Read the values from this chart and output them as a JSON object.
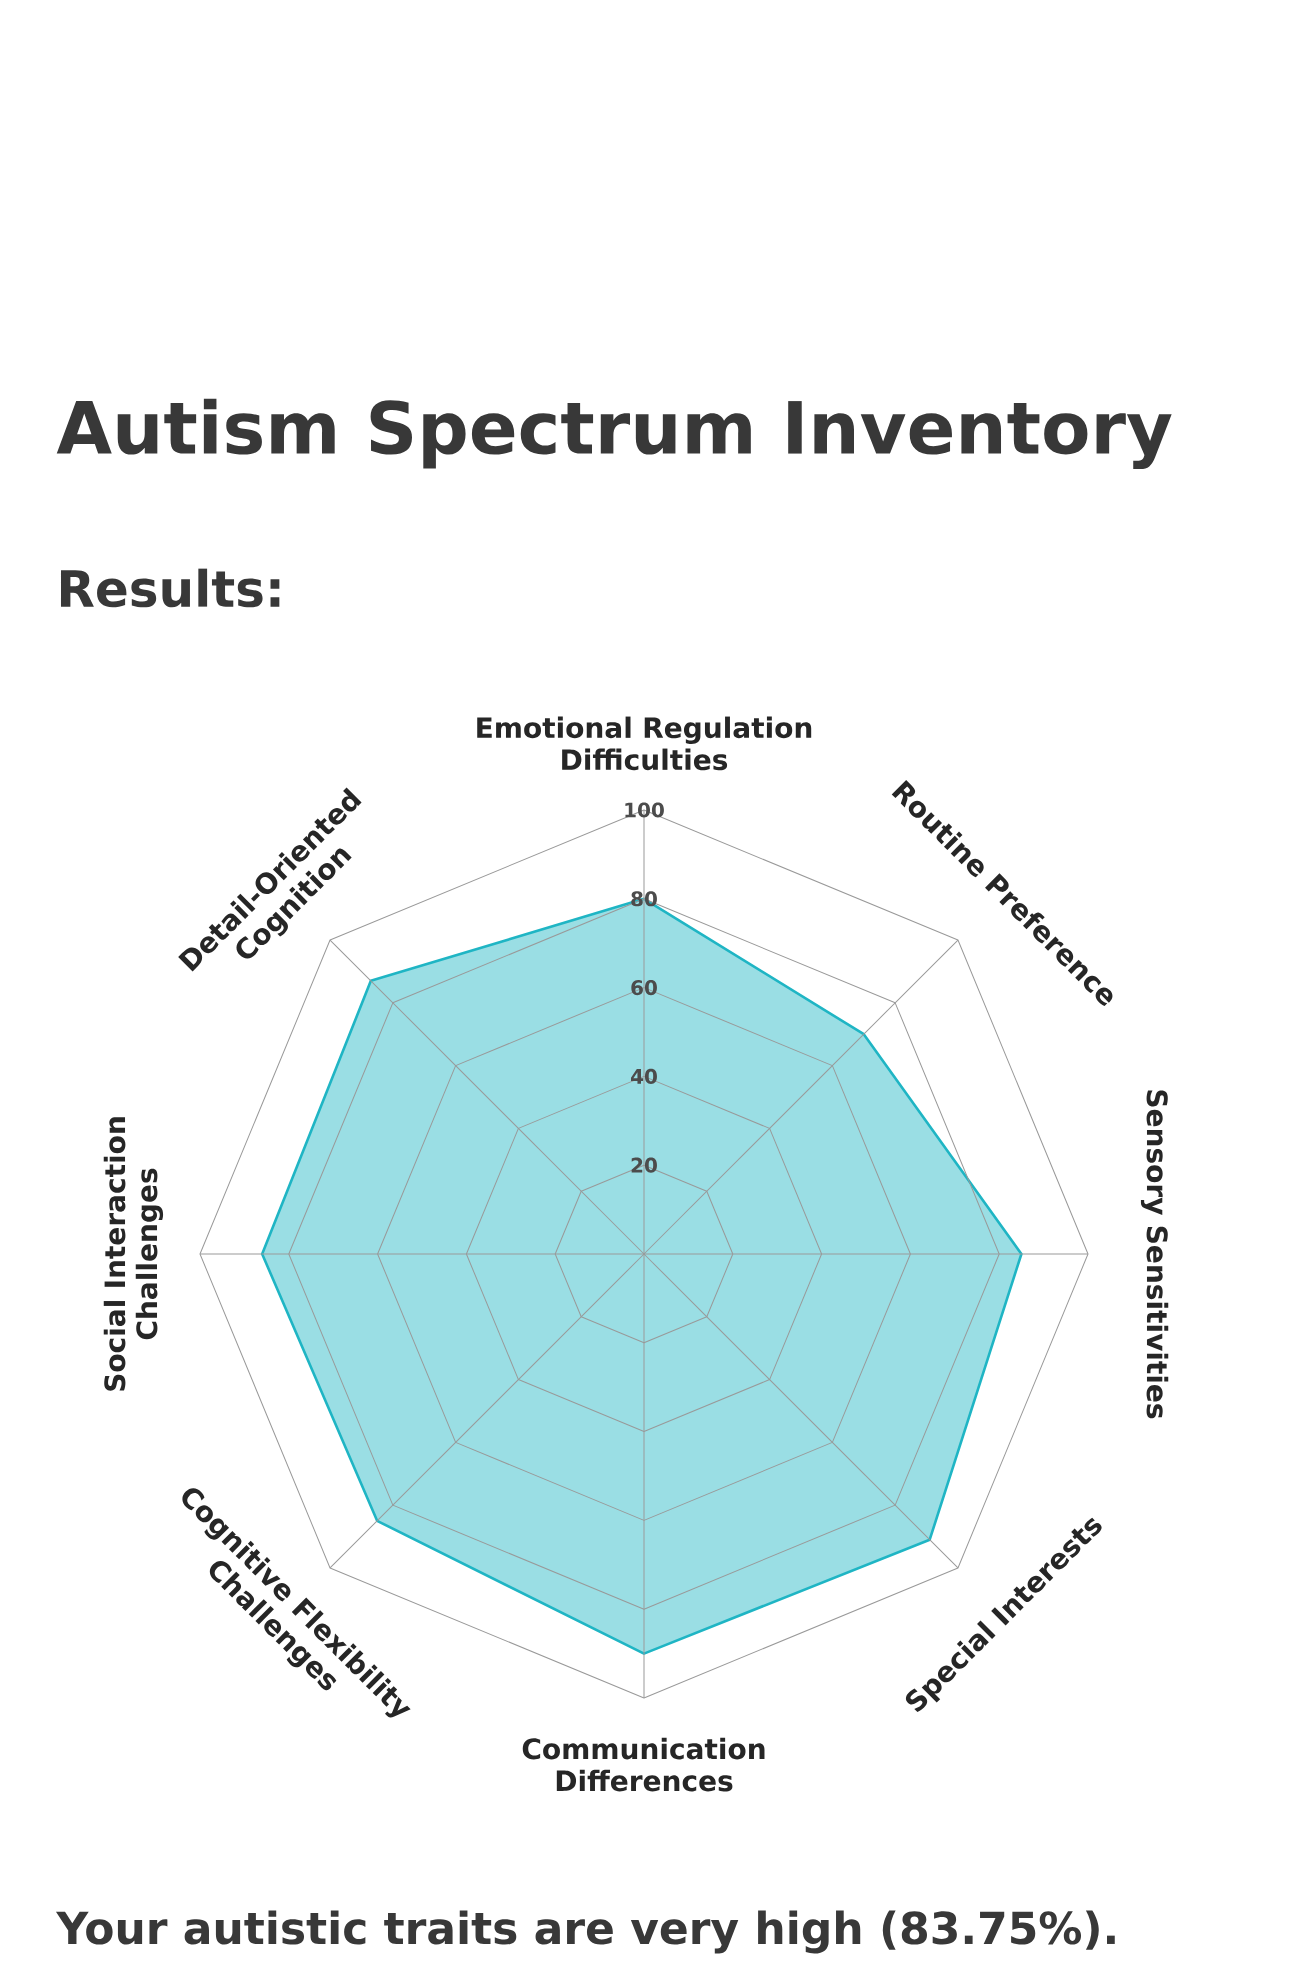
{
  "chart_data": {
    "type": "radar",
    "title": "Autism Spectrum Inventory",
    "subtitle": "Results:",
    "categories": [
      "Emotional Regulation Difficulties",
      "Routine Preference",
      "Sensory Sensitivities",
      "Special Interests",
      "Communication Differences",
      "Cognitive Flexibility Challenges",
      "Social Interaction Challenges",
      "Detail-Oriented Cognition"
    ],
    "series": [
      {
        "color": "#1fb5c4",
        "values": [
          80,
          70,
          85,
          91,
          90,
          85,
          86,
          87
        ]
      }
    ],
    "ylim": [
      0,
      100
    ],
    "yticks": [
      20,
      40,
      60,
      80,
      100
    ],
    "grid": true,
    "annotations": [
      "Your autistic traits are very high (83.75%)."
    ]
  }
}
